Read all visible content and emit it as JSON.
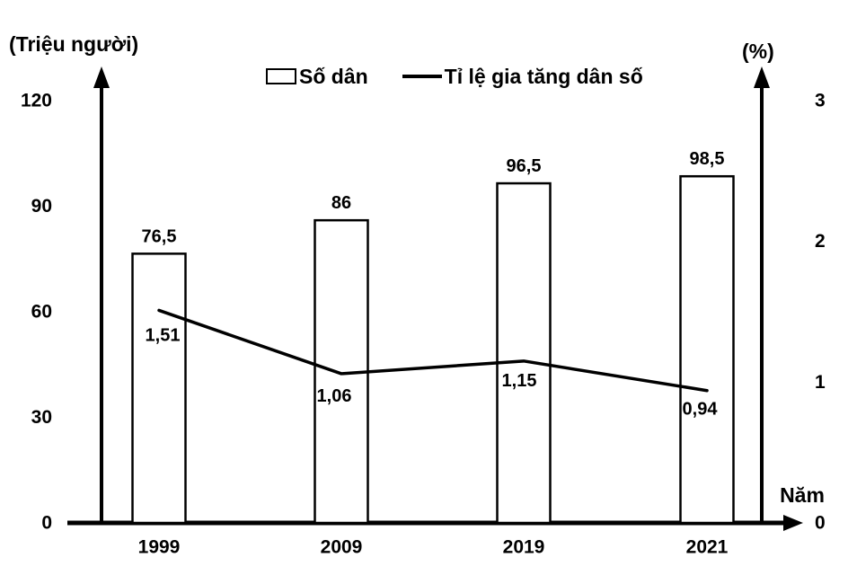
{
  "chart_data": {
    "type": "bar+line",
    "title": "",
    "categories": [
      "1999",
      "2009",
      "2019",
      "2021"
    ],
    "series": [
      {
        "name": "Số dân",
        "type": "bar",
        "axis": "left",
        "values": [
          76.5,
          86,
          96.5,
          98.5
        ],
        "labels": [
          "76,5",
          "86",
          "96,5",
          "98,5"
        ]
      },
      {
        "name": "Tỉ lệ gia tăng dân số",
        "type": "line",
        "axis": "right",
        "values": [
          1.51,
          1.06,
          1.15,
          0.94
        ],
        "labels": [
          "1,51",
          "1,06",
          "1,15",
          "0,94"
        ]
      }
    ],
    "left_axis": {
      "label": "(Triệu người)",
      "ticks": [
        0,
        30,
        60,
        90,
        120
      ],
      "range": [
        0,
        120
      ]
    },
    "right_axis": {
      "label": "(%)",
      "ticks": [
        0,
        1,
        2,
        3
      ],
      "range": [
        0,
        3
      ]
    },
    "x_axis": {
      "label": "Năm"
    },
    "legend": {
      "position": "top-center",
      "entries": [
        "Số dân",
        "Tỉ lệ gia tăng dân số"
      ]
    },
    "grid": "off",
    "colors": {
      "background": "#ffffff",
      "bar_fill": "#ffffff",
      "bar_stroke": "#000000",
      "line": "#000000",
      "text": "#000000"
    }
  }
}
